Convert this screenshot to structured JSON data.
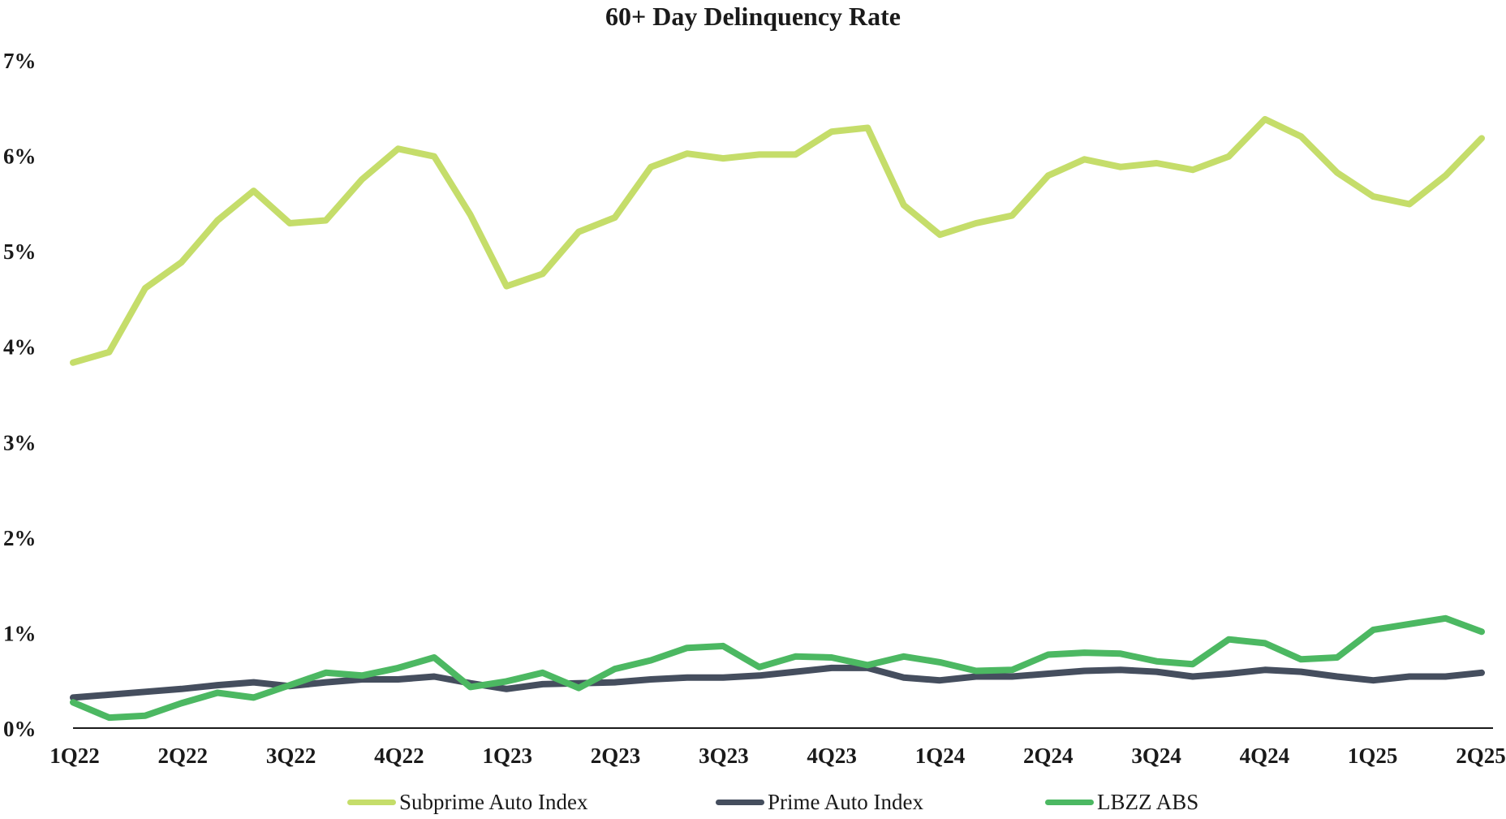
{
  "chart_data": {
    "type": "line",
    "title": "60+ Day Delinquency Rate",
    "xlabel": "",
    "ylabel": "",
    "ylim": [
      0,
      7
    ],
    "yticks": [
      "0%",
      "1%",
      "2%",
      "3%",
      "4%",
      "5%",
      "6%",
      "7%"
    ],
    "xtick_labels": [
      "1Q22",
      "2Q22",
      "3Q22",
      "4Q22",
      "1Q23",
      "2Q23",
      "3Q23",
      "4Q23",
      "1Q24",
      "2Q24",
      "3Q24",
      "4Q24",
      "1Q25",
      "2Q25"
    ],
    "points_per_series": 40,
    "legend_position": "bottom-center",
    "series": [
      {
        "name": "Subprime Auto Index",
        "color": "#c5dd6a",
        "values": [
          3.83,
          3.94,
          4.61,
          4.88,
          5.32,
          5.63,
          5.29,
          5.32,
          5.75,
          6.07,
          5.99,
          5.38,
          4.63,
          4.76,
          5.2,
          5.35,
          5.88,
          6.02,
          5.97,
          6.01,
          6.01,
          6.25,
          6.29,
          5.48,
          5.17,
          5.29,
          5.37,
          5.79,
          5.96,
          5.88,
          5.92,
          5.85,
          5.99,
          6.38,
          6.2,
          5.82,
          5.57,
          5.49,
          5.79,
          6.18
        ]
      },
      {
        "name": "Prime Auto Index",
        "color": "#454e5e",
        "values": [
          0.32,
          0.35,
          0.38,
          0.41,
          0.45,
          0.48,
          0.44,
          0.48,
          0.51,
          0.51,
          0.54,
          0.47,
          0.41,
          0.46,
          0.47,
          0.48,
          0.51,
          0.53,
          0.53,
          0.55,
          0.59,
          0.63,
          0.63,
          0.53,
          0.5,
          0.54,
          0.54,
          0.57,
          0.6,
          0.61,
          0.59,
          0.54,
          0.57,
          0.61,
          0.59,
          0.54,
          0.5,
          0.54,
          0.54,
          0.58
        ]
      },
      {
        "name": "LBZZ ABS",
        "color": "#4cb862",
        "values": [
          0.27,
          0.11,
          0.13,
          0.26,
          0.37,
          0.32,
          0.45,
          0.58,
          0.55,
          0.63,
          0.74,
          0.43,
          0.49,
          0.58,
          0.42,
          0.62,
          0.71,
          0.84,
          0.86,
          0.64,
          0.75,
          0.74,
          0.66,
          0.75,
          0.69,
          0.6,
          0.61,
          0.77,
          0.79,
          0.78,
          0.7,
          0.67,
          0.93,
          0.89,
          0.72,
          0.74,
          1.03,
          1.09,
          1.15,
          1.01
        ]
      }
    ]
  }
}
